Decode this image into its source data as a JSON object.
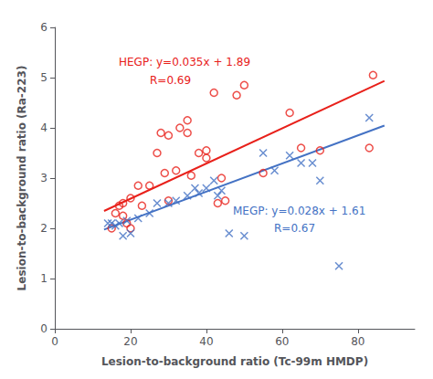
{
  "chart_data": {
    "type": "scatter",
    "xlabel": "Lesion-to-background ratio (Tc-99m HMDP)",
    "ylabel": "Lesion-to-background ratio (Ra-223)",
    "xlim": [
      0,
      95
    ],
    "ylim": [
      0,
      6
    ],
    "xticks": [
      0,
      20,
      40,
      60,
      80
    ],
    "yticks": [
      0,
      1,
      2,
      3,
      4,
      5,
      6
    ],
    "grid": false,
    "series": [
      {
        "type": "scatter",
        "color": "#e8201a",
        "marker": "circle_open",
        "x": [
          15,
          16,
          17,
          18,
          18,
          19,
          20,
          20,
          22,
          23,
          25,
          27,
          28,
          29,
          30,
          30,
          32,
          33,
          35,
          35,
          36,
          38,
          40,
          40,
          42,
          43,
          44,
          45,
          48,
          50,
          55,
          62,
          65,
          70,
          83,
          84
        ],
        "values": [
          2.0,
          2.3,
          2.45,
          2.25,
          2.5,
          2.1,
          2.0,
          2.6,
          2.85,
          2.45,
          2.85,
          3.5,
          3.9,
          3.1,
          2.55,
          3.85,
          3.15,
          4.0,
          3.9,
          4.15,
          3.05,
          3.5,
          3.4,
          3.55,
          4.7,
          2.5,
          3.0,
          2.55,
          4.65,
          4.85,
          3.1,
          4.3,
          3.6,
          3.55,
          3.6,
          5.05
        ]
      },
      {
        "type": "scatter",
        "color": "#4472c4",
        "marker": "x",
        "x": [
          14,
          15,
          16,
          17,
          18,
          19,
          20,
          22,
          25,
          27,
          30,
          32,
          35,
          37,
          38,
          40,
          42,
          43,
          44,
          46,
          50,
          55,
          58,
          62,
          65,
          68,
          70,
          75,
          83
        ],
        "values": [
          2.1,
          2.1,
          2.05,
          2.1,
          1.85,
          2.15,
          1.9,
          2.2,
          2.3,
          2.5,
          2.5,
          2.55,
          2.65,
          2.8,
          2.7,
          2.8,
          2.95,
          2.65,
          2.75,
          1.9,
          1.85,
          3.5,
          3.15,
          3.45,
          3.3,
          3.3,
          2.95,
          1.25,
          4.2
        ]
      },
      {
        "type": "line",
        "color": "#e8201a",
        "line_style": "solid",
        "x": [
          13,
          87
        ],
        "values": [
          2.345,
          4.935
        ]
      },
      {
        "type": "line",
        "color": "#4472c4",
        "line_style": "solid",
        "x": [
          13,
          87
        ],
        "values": [
          1.974,
          4.046
        ]
      }
    ],
    "annotations": [
      {
        "text": "HEGP: y=0.035x + 1.89",
        "color": "#e8201a"
      },
      {
        "text": "R=0.69",
        "color": "#e8201a"
      },
      {
        "text": "MEGP: y=0.028x + 1.61",
        "color": "#4472c4"
      },
      {
        "text": "R=0.67",
        "color": "#4472c4"
      }
    ]
  }
}
